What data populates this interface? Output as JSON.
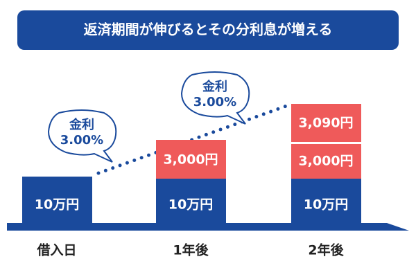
{
  "header": {
    "title": "返済期間が伸びるとその分利息が増える"
  },
  "columns": [
    {
      "label": "借入日",
      "blocks": [
        "10万円"
      ]
    },
    {
      "label": "1年後",
      "blocks": [
        "10万円",
        "3,000円"
      ]
    },
    {
      "label": "2年後",
      "blocks": [
        "10万円",
        "3,000円",
        "3,090円"
      ]
    }
  ],
  "bubbles": [
    {
      "lines": [
        "金利",
        "3.00%"
      ]
    },
    {
      "lines": [
        "金利",
        "3.00%"
      ]
    }
  ]
}
